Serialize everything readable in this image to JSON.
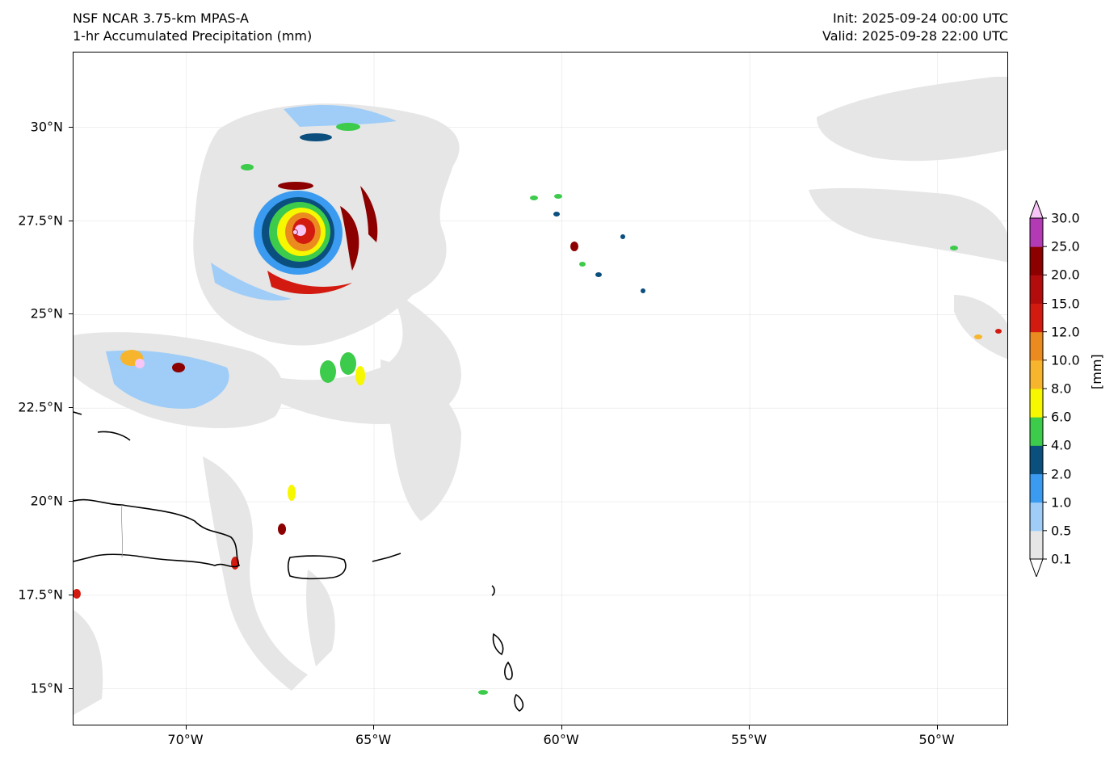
{
  "header": {
    "model": "NSF NCAR 3.75-km MPAS-A",
    "field": "1-hr Accumulated Precipitation (mm)",
    "init": "Init: 2025-09-24 00:00 UTC",
    "valid": "Valid: 2025-09-28 22:00 UTC"
  },
  "map": {
    "lon_range": [
      -73,
      -48.1
    ],
    "lat_range": [
      14,
      32
    ],
    "xticks": [
      {
        "lon": -70,
        "label": "70°W"
      },
      {
        "lon": -65,
        "label": "65°W"
      },
      {
        "lon": -60,
        "label": "60°W"
      },
      {
        "lon": -55,
        "label": "55°W"
      },
      {
        "lon": -50,
        "label": "50°W"
      }
    ],
    "yticks": [
      {
        "lat": 30,
        "label": "30°N"
      },
      {
        "lat": 27.5,
        "label": "27.5°N"
      },
      {
        "lat": 25,
        "label": "25°N"
      },
      {
        "lat": 22.5,
        "label": "22.5°N"
      },
      {
        "lat": 20,
        "label": "20°N"
      },
      {
        "lat": 17.5,
        "label": "17.5°N"
      },
      {
        "lat": 15,
        "label": "15°N"
      }
    ],
    "gridlines": true,
    "storm_center": {
      "lon": -67.1,
      "lat": 27.2
    }
  },
  "colorbar": {
    "unit_label": "[mm]",
    "extend": "both",
    "levels": [
      "0.1",
      "0.5",
      "1.0",
      "2.0",
      "4.0",
      "6.0",
      "8.0",
      "10.0",
      "12.0",
      "15.0",
      "20.0",
      "25.0",
      "30.0"
    ],
    "colors": [
      "#e6e6e6",
      "#9fcdf7",
      "#3b9bf0",
      "#0a4f7e",
      "#3dcb4b",
      "#f7f700",
      "#f7b52d",
      "#eb8a1f",
      "#d31a11",
      "#b30c0c",
      "#8c0000",
      "#b23ab5",
      "#f7c6f7"
    ],
    "under_color": "#ffffff",
    "over_color": "#f7c6f7"
  }
}
